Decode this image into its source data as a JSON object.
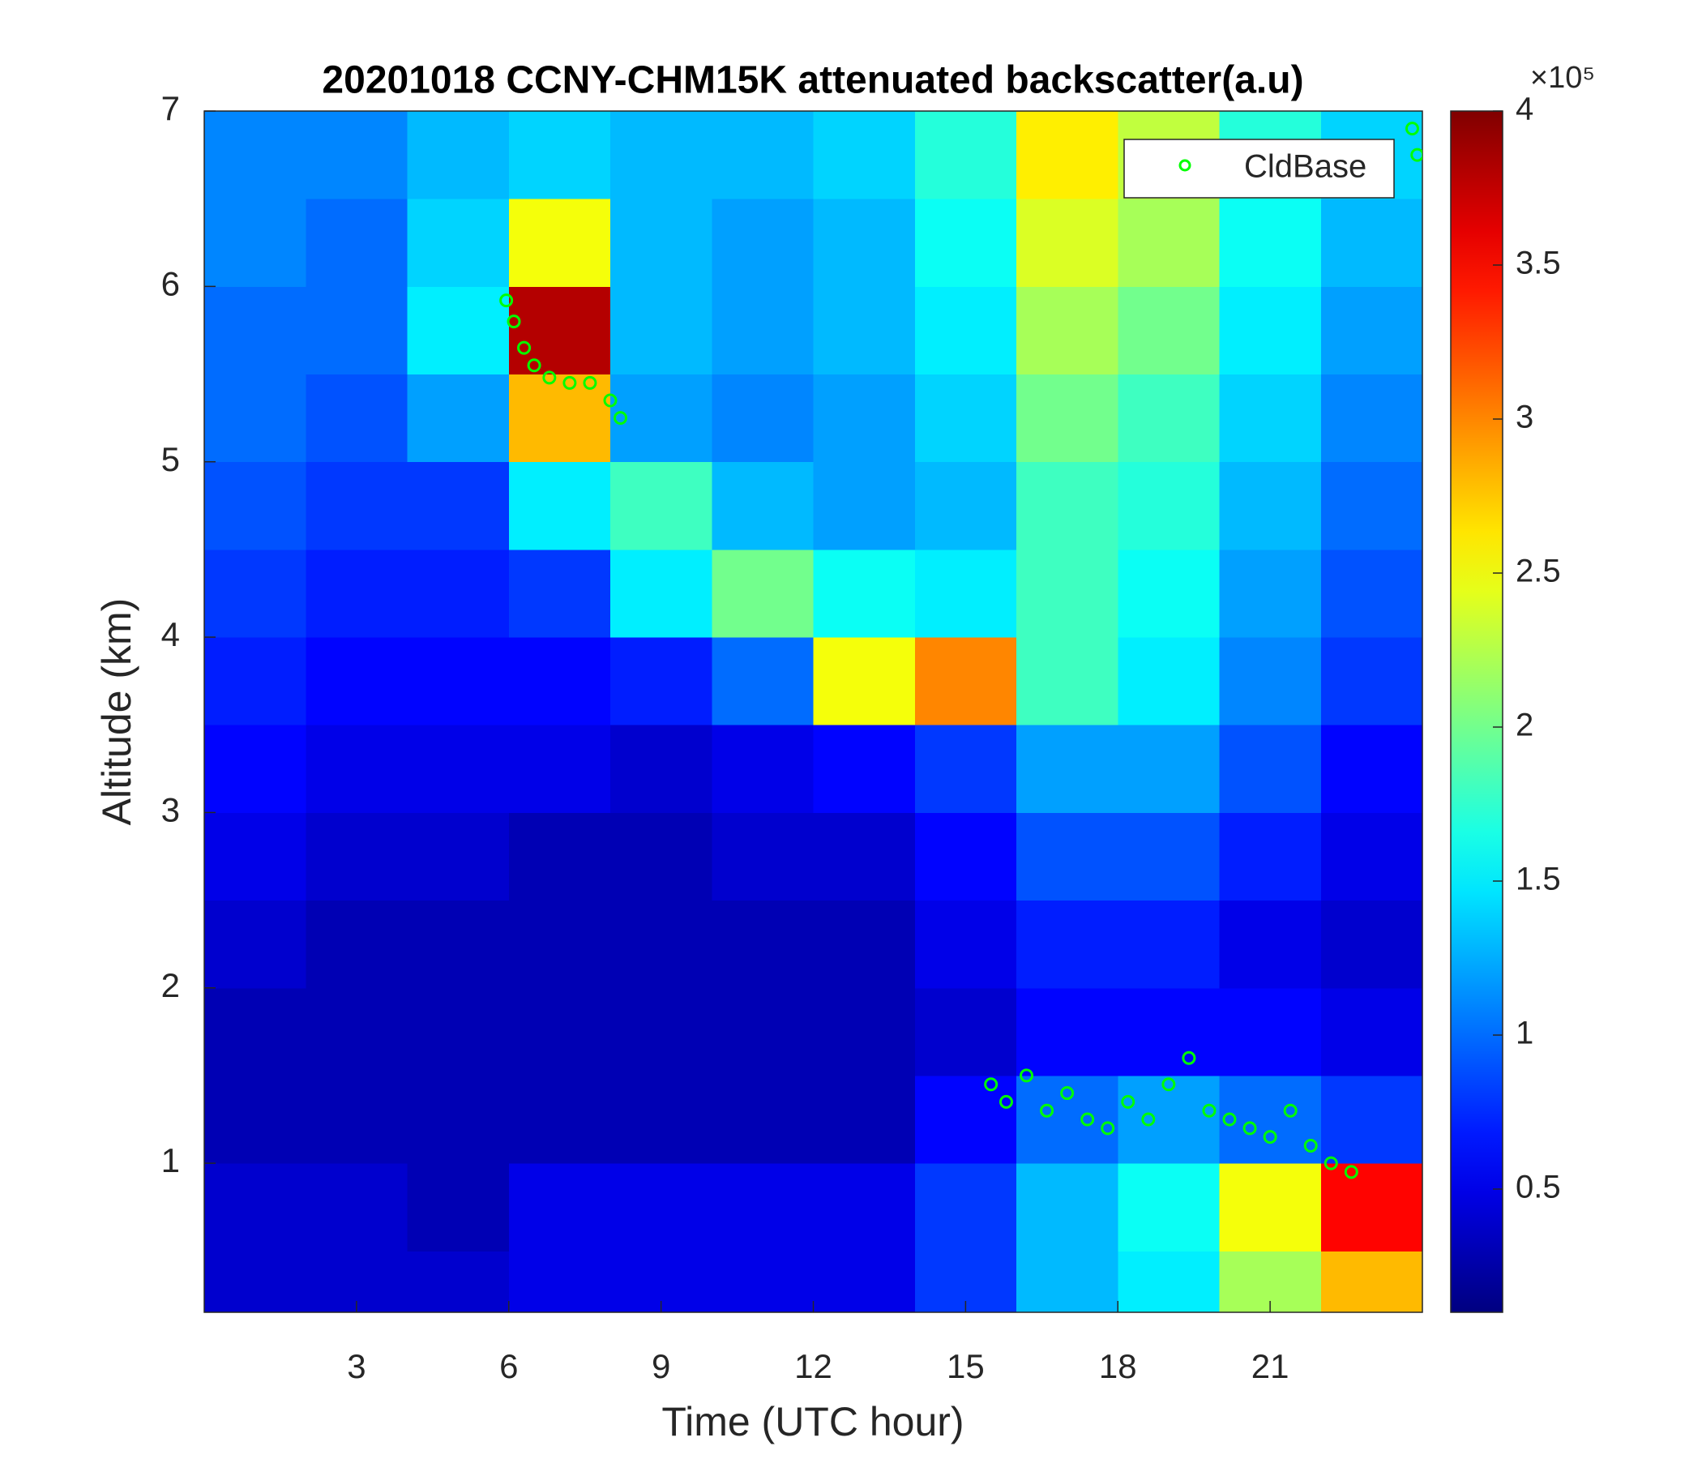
{
  "chart_data": {
    "type": "heatmap",
    "title": "20201018 CCNY-CHM15K attenuated backscatter(a.u)",
    "x_label": "Time (UTC hour)",
    "y_label": "Altitude (km)",
    "xlim": [
      0,
      24
    ],
    "ylim": [
      0.15,
      7
    ],
    "xticks": [
      3,
      6,
      9,
      12,
      15,
      18,
      21
    ],
    "yticks": [
      1,
      2,
      3,
      4,
      5,
      6,
      7
    ],
    "x_edges": [
      0,
      2,
      4,
      6,
      8,
      10,
      12,
      14,
      16,
      18,
      20,
      22,
      24
    ],
    "y_edges": [
      0.15,
      0.5,
      1,
      1.5,
      2,
      2.5,
      3,
      3.5,
      4,
      4.5,
      5,
      5.5,
      6,
      6.5,
      7
    ],
    "z": [
      [
        0.4,
        0.4,
        0.4,
        0.5,
        0.5,
        0.5,
        0.5,
        0.8,
        1.3,
        1.5,
        2.2,
        2.8
      ],
      [
        0.4,
        0.4,
        0.3,
        0.5,
        0.5,
        0.5,
        0.5,
        0.8,
        1.3,
        1.6,
        2.5,
        3.5
      ],
      [
        0.3,
        0.3,
        0.3,
        0.3,
        0.3,
        0.3,
        0.3,
        0.6,
        1.0,
        1.2,
        1.0,
        0.8
      ],
      [
        0.3,
        0.3,
        0.3,
        0.3,
        0.3,
        0.3,
        0.3,
        0.4,
        0.6,
        0.6,
        0.6,
        0.5
      ],
      [
        0.4,
        0.3,
        0.3,
        0.3,
        0.3,
        0.3,
        0.3,
        0.5,
        0.7,
        0.7,
        0.5,
        0.4
      ],
      [
        0.5,
        0.4,
        0.4,
        0.3,
        0.3,
        0.4,
        0.4,
        0.6,
        0.9,
        0.9,
        0.7,
        0.5
      ],
      [
        0.6,
        0.5,
        0.5,
        0.5,
        0.4,
        0.5,
        0.6,
        0.8,
        1.2,
        1.2,
        0.9,
        0.6
      ],
      [
        0.7,
        0.6,
        0.6,
        0.6,
        0.7,
        1.0,
        2.5,
        3.0,
        1.8,
        1.5,
        1.1,
        0.8
      ],
      [
        0.8,
        0.7,
        0.7,
        0.8,
        1.5,
        2.0,
        1.6,
        1.5,
        1.8,
        1.6,
        1.2,
        0.9
      ],
      [
        0.9,
        0.8,
        0.8,
        1.5,
        1.8,
        1.3,
        1.2,
        1.3,
        1.8,
        1.7,
        1.3,
        1.0
      ],
      [
        1.0,
        0.9,
        1.2,
        2.8,
        1.2,
        1.1,
        1.2,
        1.4,
        2.0,
        1.8,
        1.4,
        1.1
      ],
      [
        1.0,
        1.0,
        1.5,
        3.8,
        1.3,
        1.2,
        1.3,
        1.5,
        2.2,
        2.0,
        1.5,
        1.2
      ],
      [
        1.1,
        1.0,
        1.4,
        2.5,
        1.3,
        1.2,
        1.3,
        1.6,
        2.4,
        2.2,
        1.6,
        1.3
      ],
      [
        1.1,
        1.1,
        1.3,
        1.4,
        1.3,
        1.3,
        1.4,
        1.7,
        2.6,
        2.3,
        1.7,
        1.4
      ]
    ],
    "colormap": "jet",
    "clim": [
      0.1,
      4
    ],
    "colorbar_ticks": [
      0.5,
      1,
      1.5,
      2,
      2.5,
      3,
      3.5,
      4
    ],
    "colorbar_exponent": "×10⁵",
    "legend_position": "upper right",
    "series": [
      {
        "name": "CldBase",
        "color": "#00ff00",
        "x": [
          5.95,
          6.1,
          6.3,
          6.5,
          6.8,
          7.2,
          7.6,
          8.0,
          8.2,
          15.5,
          15.8,
          16.2,
          16.6,
          17.0,
          17.4,
          17.8,
          18.2,
          18.6,
          19.0,
          19.4,
          19.8,
          20.2,
          20.6,
          21.0,
          21.4,
          21.8,
          22.2,
          22.6,
          23.8,
          23.9
        ],
        "values": [
          5.92,
          5.8,
          5.65,
          5.55,
          5.48,
          5.45,
          5.45,
          5.35,
          5.25,
          1.45,
          1.35,
          1.5,
          1.3,
          1.4,
          1.25,
          1.2,
          1.35,
          1.25,
          1.45,
          1.6,
          1.3,
          1.25,
          1.2,
          1.15,
          1.3,
          1.1,
          1.0,
          0.95,
          6.9,
          6.75
        ]
      }
    ]
  }
}
